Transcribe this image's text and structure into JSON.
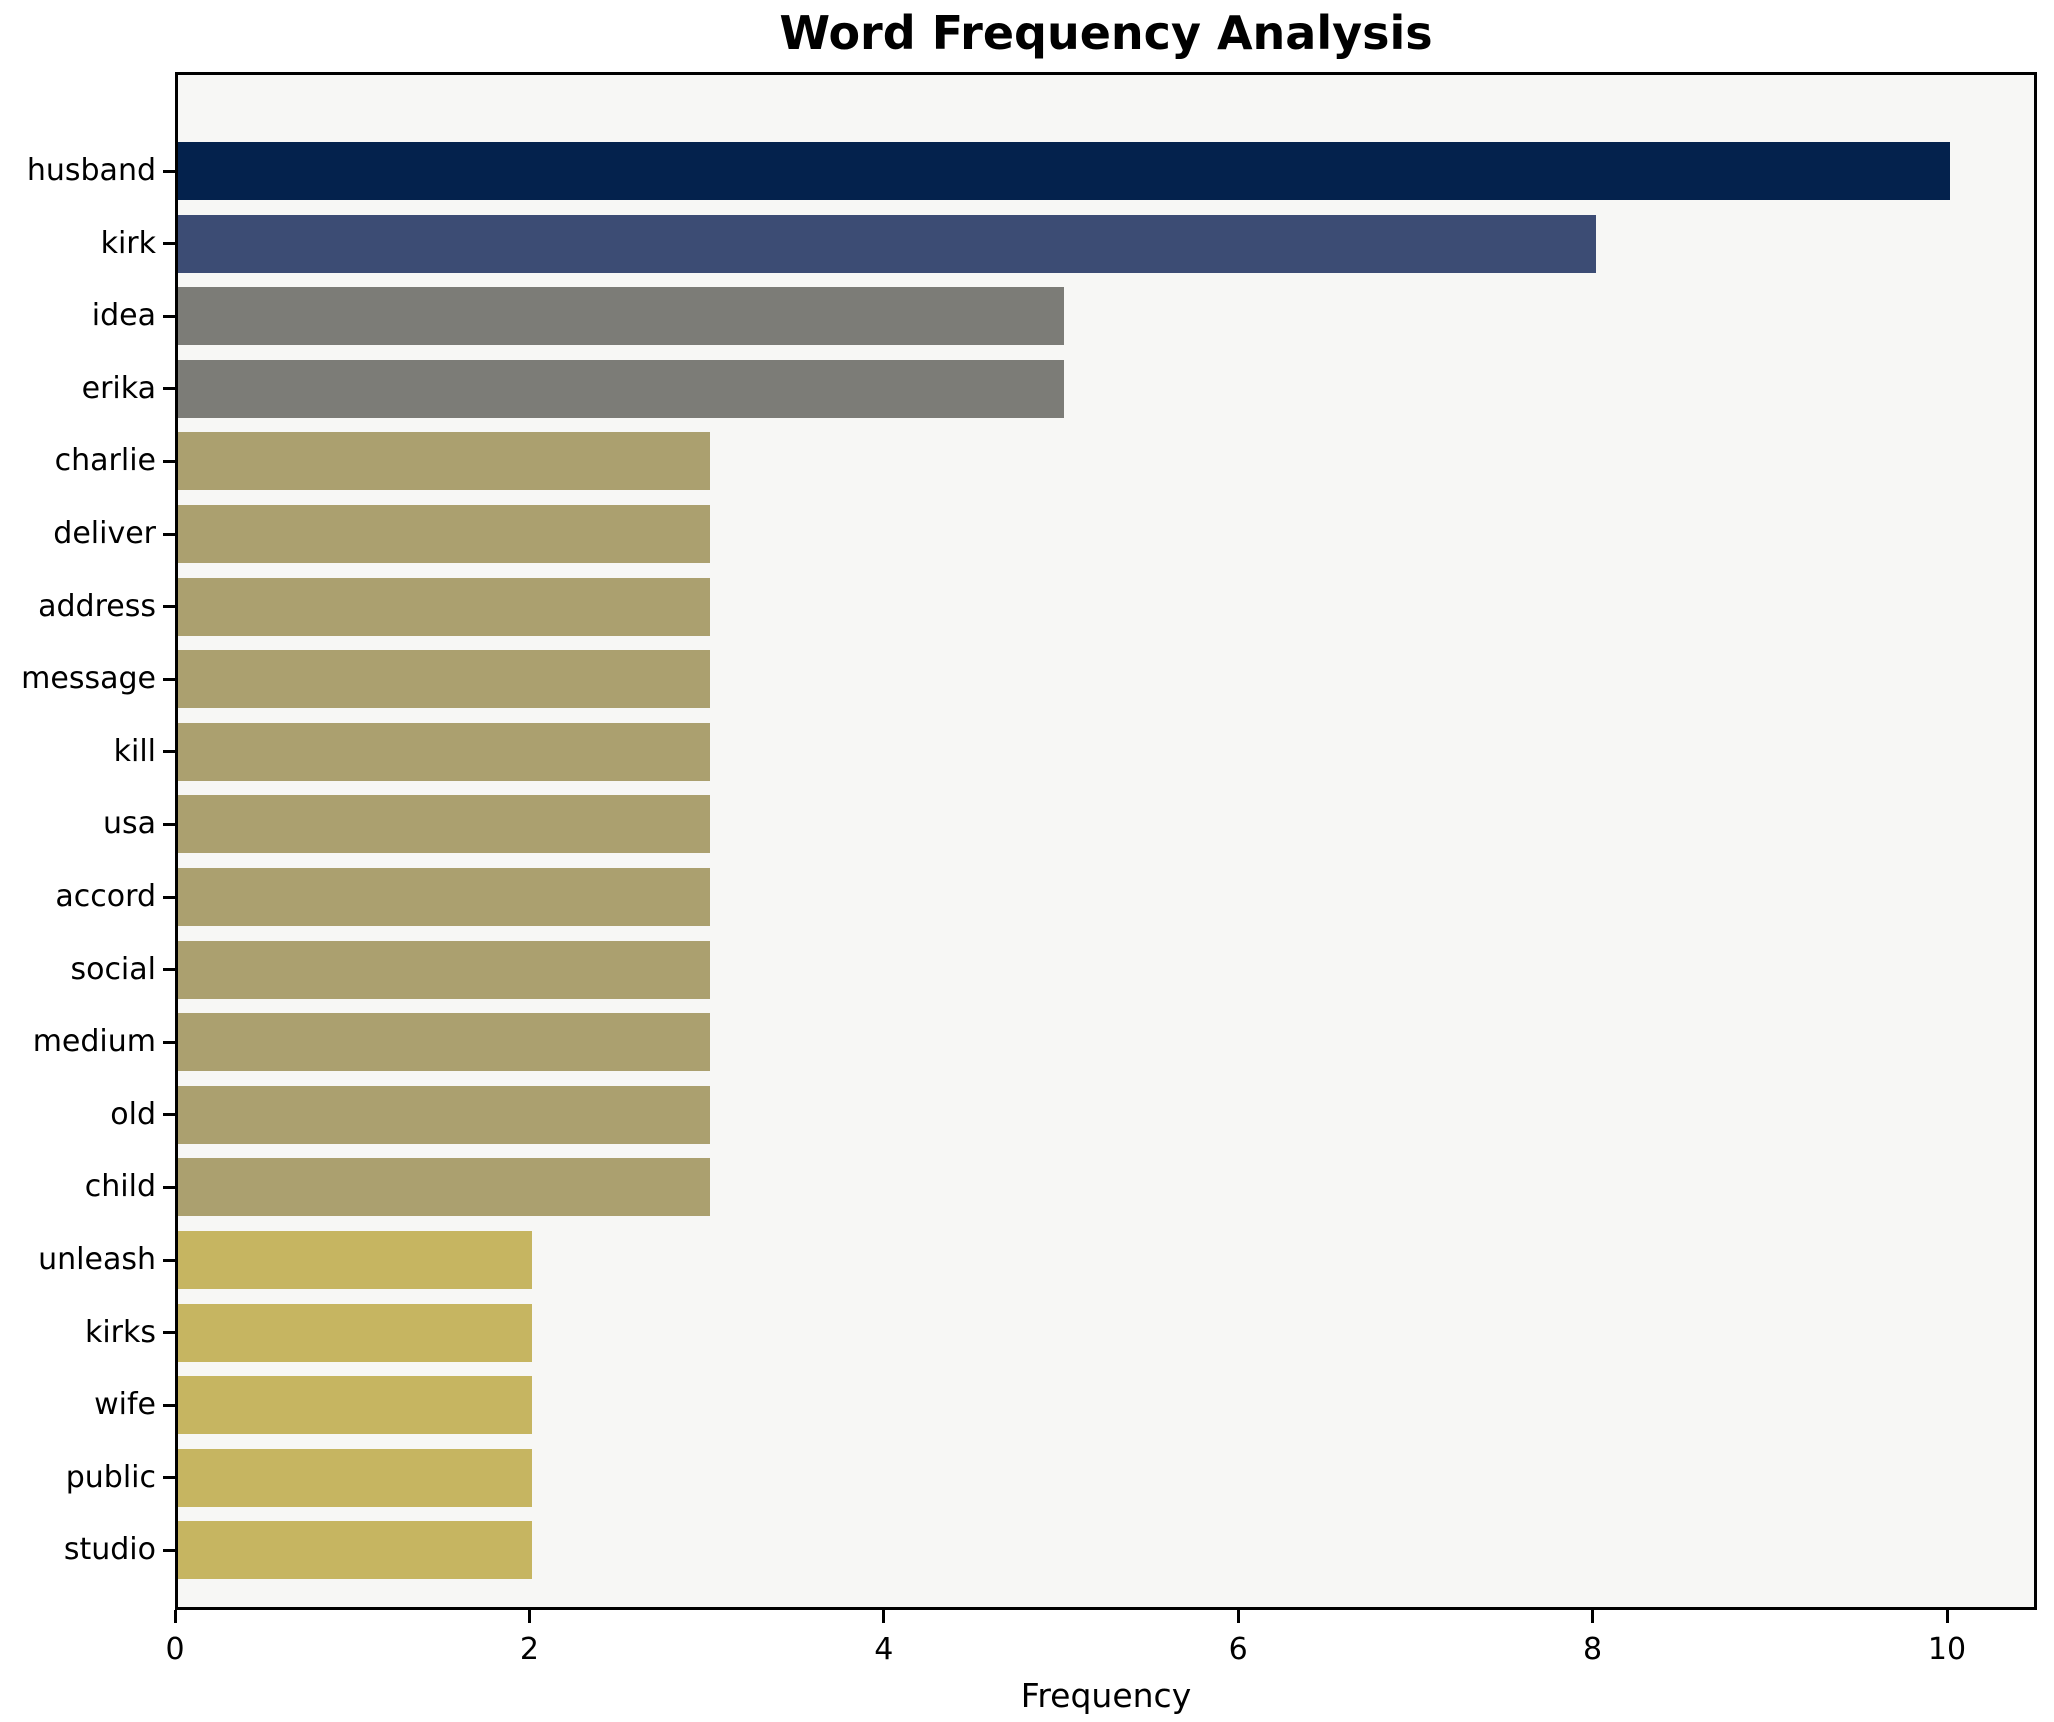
{
  "chart": {
    "title": "Word Frequency Analysis",
    "xlabel": "Frequency"
  },
  "chart_data": {
    "type": "bar",
    "orientation": "horizontal",
    "title": "Word Frequency Analysis",
    "xlabel": "Frequency",
    "ylabel": "",
    "categories": [
      "husband",
      "kirk",
      "idea",
      "erika",
      "charlie",
      "deliver",
      "address",
      "message",
      "kill",
      "usa",
      "accord",
      "social",
      "medium",
      "old",
      "child",
      "unleash",
      "kirks",
      "wife",
      "public",
      "studio"
    ],
    "values": [
      10,
      8,
      5,
      5,
      3,
      3,
      3,
      3,
      3,
      3,
      3,
      3,
      3,
      3,
      3,
      2,
      2,
      2,
      2,
      2
    ],
    "bar_colors": [
      "#04224d",
      "#3c4c74",
      "#7c7c77",
      "#7c7c77",
      "#aba06f",
      "#aba06f",
      "#aba06f",
      "#aba06f",
      "#aba06f",
      "#aba06f",
      "#aba06f",
      "#aba06f",
      "#aba06f",
      "#aba06f",
      "#aba06f",
      "#c6b561",
      "#c6b561",
      "#c6b561",
      "#c6b561",
      "#c6b561"
    ],
    "xticks": [
      0,
      2,
      4,
      6,
      8,
      10
    ],
    "xlim": [
      0,
      10.5
    ],
    "grid": false,
    "legend": null,
    "plot_background": "#f7f7f5",
    "figure_background": "#ffffff",
    "axis_color": "#000000"
  }
}
